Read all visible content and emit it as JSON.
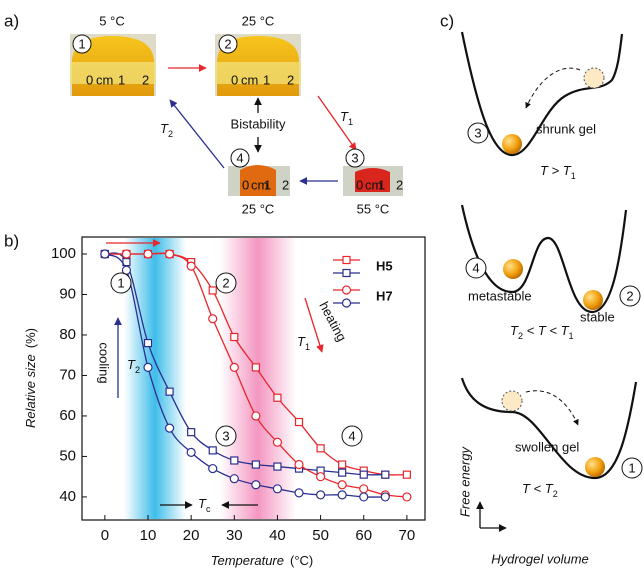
{
  "panel_a": {
    "label": "a)",
    "states": [
      {
        "number": "1",
        "temperature": "5 °C"
      },
      {
        "number": "2",
        "temperature": "25 °C"
      },
      {
        "number": "3",
        "temperature": "55 °C"
      },
      {
        "number": "4",
        "temperature": "25 °C"
      }
    ],
    "ruler": [
      "0",
      "cm",
      "1",
      "2"
    ],
    "heat_arrow": [
      "T",
      "1"
    ],
    "cool_arrow": [
      "T",
      "2"
    ],
    "bistability": "Bistability"
  },
  "chart_data": {
    "type": "line",
    "label": "b)",
    "x": [
      0,
      5,
      10,
      15,
      20,
      25,
      30,
      35,
      40,
      45,
      50,
      55,
      60,
      65,
      70
    ],
    "series": [
      {
        "name": "H5",
        "marker": "square",
        "heating": {
          "color": "#e8262b",
          "values": [
            100,
            100,
            100,
            100,
            98,
            91,
            79.5,
            72,
            64.5,
            58.5,
            52,
            48,
            46.5,
            45.5,
            45.5
          ]
        },
        "cooling": {
          "color": "#2b2f8f",
          "values": [
            100,
            98,
            78,
            66,
            56,
            51.5,
            49,
            48,
            47.5,
            47,
            46.5,
            46,
            45.5,
            45.5,
            null
          ]
        }
      },
      {
        "name": "H7",
        "marker": "circle",
        "heating": {
          "color": "#e8262b",
          "values": [
            100,
            100,
            100,
            100,
            97,
            84,
            72,
            60,
            53.5,
            48,
            45,
            43,
            42,
            40.5,
            40
          ]
        },
        "cooling": {
          "color": "#2b2f8f",
          "values": [
            100,
            96,
            72,
            57,
            51,
            47,
            44.5,
            43,
            42,
            41,
            40.5,
            40.5,
            40,
            40,
            null
          ]
        }
      }
    ],
    "xlim": [
      -5.3,
      74.2
    ],
    "ylim": [
      34.3,
      104.2
    ],
    "xticks": [
      0,
      10,
      20,
      30,
      40,
      50,
      60,
      70
    ],
    "yticks": [
      40,
      50,
      60,
      70,
      80,
      90,
      100
    ],
    "x_label": "Temperature",
    "x_unit": "(°C)",
    "y_label": "Relative size",
    "y_unit": "(%)",
    "markers": [
      "1",
      "2",
      "3",
      "4"
    ],
    "heating": "heating",
    "cooling": "cooling",
    "t1": [
      "T",
      "1"
    ],
    "t2": [
      "T",
      "2"
    ],
    "tc": [
      "T",
      "c"
    ]
  },
  "panel_c": {
    "label": "c)",
    "wells": [
      {
        "states": [
          {
            "number": "3",
            "name": "shrunk gel"
          }
        ],
        "condition": [
          "T > T",
          "1"
        ]
      },
      {
        "states": [
          {
            "number": "4",
            "name": "metastable"
          },
          {
            "number": "2",
            "name": "stable"
          }
        ],
        "condition": [
          "T",
          "2",
          " < T < T",
          "1"
        ]
      },
      {
        "states": [
          {
            "number": "1",
            "name": "swollen gel"
          }
        ],
        "condition": [
          "T < T",
          "2"
        ]
      }
    ],
    "y_axis": "Free energy",
    "x_axis": "Hydrogel volume"
  }
}
